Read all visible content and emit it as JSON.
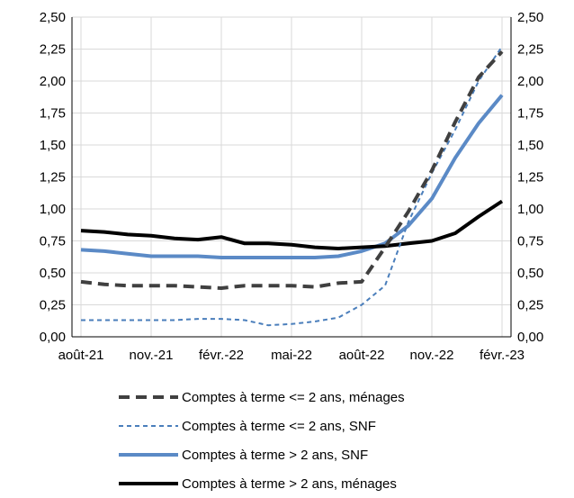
{
  "chart_data": {
    "type": "line",
    "title": "",
    "xlabel": "",
    "ylabel": "",
    "x_ticks": [
      "août-21",
      "nov.-21",
      "févr.-22",
      "mai-22",
      "août-22",
      "nov.-22",
      "févr.-23"
    ],
    "y_ticks": [
      "0,00",
      "0,25",
      "0,50",
      "0,75",
      "1,00",
      "1,25",
      "1,50",
      "1,75",
      "2,00",
      "2,25",
      "2,50"
    ],
    "ylim": [
      0,
      2.5
    ],
    "y_right_ticks": [
      "0,00",
      "0,25",
      "0,50",
      "0,75",
      "1,00",
      "1,25",
      "1,50",
      "1,75",
      "2,00",
      "2,25",
      "2,50"
    ],
    "grid": true,
    "legend_position": "bottom",
    "categories": [
      "août-21",
      "sept.-21",
      "oct.-21",
      "nov.-21",
      "déc.-21",
      "janv.-22",
      "févr.-22",
      "mars-22",
      "avr.-22",
      "mai-22",
      "juin-22",
      "juil.-22",
      "août-22",
      "sept.-22",
      "oct.-22",
      "nov.-22",
      "déc.-22",
      "janv.-23",
      "févr.-23"
    ],
    "series": [
      {
        "name": "Comptes à terme <= 2 ans, ménages",
        "color": "#404040",
        "style": "dashed-thick",
        "values": [
          0.43,
          0.41,
          0.4,
          0.4,
          0.4,
          0.39,
          0.38,
          0.4,
          0.4,
          0.4,
          0.39,
          0.42,
          0.43,
          0.7,
          0.98,
          1.3,
          1.68,
          2.03,
          2.23
        ]
      },
      {
        "name": "Comptes à terme <= 2 ans, SNF",
        "color": "#4a7ebb",
        "style": "dashed-thin",
        "values": [
          0.13,
          0.13,
          0.13,
          0.13,
          0.13,
          0.14,
          0.14,
          0.13,
          0.09,
          0.1,
          0.12,
          0.15,
          0.25,
          0.4,
          0.9,
          1.28,
          1.62,
          2.0,
          2.27
        ]
      },
      {
        "name": "Comptes à terme > 2 ans, SNF",
        "color": "#5b8ac6",
        "style": "solid-thick",
        "values": [
          0.68,
          0.67,
          0.65,
          0.63,
          0.63,
          0.63,
          0.62,
          0.62,
          0.62,
          0.62,
          0.62,
          0.63,
          0.67,
          0.73,
          0.87,
          1.08,
          1.4,
          1.67,
          1.89
        ]
      },
      {
        "name": "Comptes à terme > 2 ans, ménages",
        "color": "#000000",
        "style": "solid-thick",
        "values": [
          0.83,
          0.82,
          0.8,
          0.79,
          0.77,
          0.76,
          0.78,
          0.73,
          0.73,
          0.72,
          0.7,
          0.69,
          0.7,
          0.71,
          0.73,
          0.75,
          0.81,
          0.94,
          1.06
        ]
      }
    ]
  }
}
